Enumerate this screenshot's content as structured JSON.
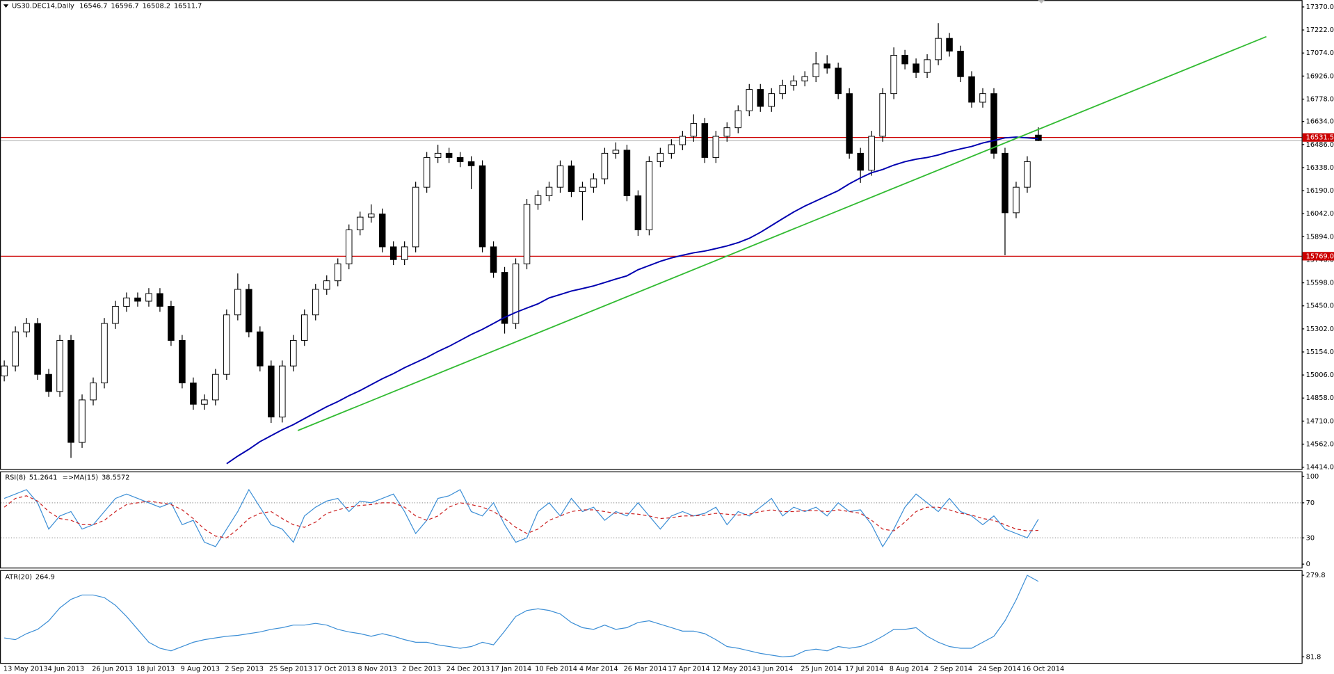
{
  "chart_data": {
    "type": "candlestick",
    "symbol": "US30.DEC14,Daily",
    "open": [
      15000,
      15064,
      15283,
      15337,
      15010,
      14900,
      15228,
      14573,
      14846,
      14955,
      15337,
      15447,
      15501,
      15480,
      15529,
      15447,
      15228,
      14955,
      14818,
      14846,
      15010,
      15392,
      15556,
      15283,
      15064,
      14736,
      15064,
      15228,
      15392,
      15556,
      15611,
      15720,
      15938,
      16020,
      16040,
      15829,
      15747,
      15829,
      16212,
      16403,
      16430,
      16403,
      16376,
      16350,
      15829,
      15665,
      15337,
      15720,
      16102,
      16157,
      16212,
      16349,
      16184,
      16212,
      16266,
      16430,
      16450,
      16157,
      15938,
      16376,
      16430,
      16485,
      16539,
      16621,
      16403,
      16539,
      16594,
      16703,
      16840,
      16731,
      16813,
      16867,
      16895,
      16922,
      17004,
      16977,
      16813,
      16430,
      16321,
      16539,
      16813,
      17059,
      17004,
      16949,
      17031,
      17168,
      17086,
      16922,
      16758,
      16813,
      16430,
      16048,
      16212,
      16546.7
    ],
    "high": [
      15099,
      15318,
      15372,
      15372,
      15045,
      15263,
      15263,
      14881,
      14990,
      15372,
      15482,
      15536,
      15536,
      15564,
      15564,
      15482,
      15263,
      14990,
      14881,
      15045,
      15427,
      15658,
      15591,
      15318,
      15099,
      15099,
      15263,
      15427,
      15591,
      15646,
      15755,
      15973,
      16055,
      16102,
      16075,
      15864,
      15864,
      16247,
      16438,
      16485,
      16465,
      16438,
      16411,
      16385,
      15864,
      15700,
      15755,
      16137,
      16192,
      16247,
      16384,
      16384,
      16247,
      16301,
      16465,
      16500,
      16485,
      16192,
      16411,
      16465,
      16520,
      16574,
      16680,
      16656,
      16574,
      16629,
      16738,
      16875,
      16875,
      16848,
      16902,
      16930,
      16957,
      17080,
      17060,
      17012,
      16848,
      16465,
      16574,
      16848,
      17110,
      17094,
      17039,
      17066,
      17266,
      17203,
      17121,
      16957,
      16848,
      16848,
      16465,
      16247,
      16411,
      16596.7
    ],
    "low": [
      14965,
      15029,
      15248,
      14975,
      14865,
      14865,
      14474,
      14538,
      14811,
      14920,
      15302,
      15412,
      15445,
      15445,
      15412,
      15193,
      14920,
      14783,
      14783,
      14811,
      14975,
      15357,
      15248,
      15029,
      14698,
      14701,
      15029,
      15193,
      15357,
      15521,
      15576,
      15685,
      15903,
      15985,
      15794,
      15712,
      15712,
      15794,
      16177,
      16368,
      16368,
      16341,
      16200,
      15794,
      15630,
      15272,
      15302,
      15685,
      16067,
      16122,
      16177,
      16149,
      16000,
      16177,
      16231,
      16395,
      16122,
      15900,
      15903,
      16341,
      16395,
      16450,
      16504,
      16368,
      16368,
      16504,
      16559,
      16668,
      16696,
      16696,
      16778,
      16832,
      16860,
      16887,
      16942,
      16778,
      16395,
      16240,
      16286,
      16504,
      16778,
      16969,
      16914,
      16914,
      16996,
      17051,
      16887,
      16723,
      16723,
      16395,
      15775,
      16013,
      16177,
      16508.2
    ],
    "close": [
      15064,
      15283,
      15337,
      15010,
      14900,
      15228,
      14573,
      14846,
      14955,
      15337,
      15447,
      15501,
      15480,
      15529,
      15447,
      15228,
      14955,
      14818,
      14846,
      15010,
      15392,
      15556,
      15283,
      15064,
      14736,
      15064,
      15228,
      15392,
      15556,
      15611,
      15720,
      15938,
      16020,
      16040,
      15829,
      15747,
      15829,
      16212,
      16403,
      16430,
      16403,
      16376,
      16350,
      15829,
      15665,
      15337,
      15720,
      16102,
      16157,
      16212,
      16349,
      16184,
      16212,
      16266,
      16430,
      16450,
      16157,
      15938,
      16376,
      16430,
      16485,
      16539,
      16621,
      16403,
      16539,
      16594,
      16703,
      16840,
      16731,
      16813,
      16867,
      16895,
      16922,
      17004,
      16977,
      16813,
      16430,
      16321,
      16539,
      16813,
      17059,
      17004,
      16949,
      17031,
      17168,
      17086,
      16922,
      16758,
      16813,
      16430,
      16048,
      16212,
      16376,
      16511.7
    ],
    "ylim": [
      14403,
      17414
    ],
    "yticks": [
      {
        "value": 17370,
        "label": "17370.0"
      },
      {
        "value": 17222,
        "label": "17222.0"
      },
      {
        "value": 17074,
        "label": "17074.0"
      },
      {
        "value": 16926,
        "label": "16926.0"
      },
      {
        "value": 16778,
        "label": "16778.0"
      },
      {
        "value": 16634,
        "label": "16634.0"
      },
      {
        "value": 16486,
        "label": "16486.0"
      },
      {
        "value": 16338,
        "label": "16338.0"
      },
      {
        "value": 16190,
        "label": "16190.0"
      },
      {
        "value": 16042,
        "label": "16042.0"
      },
      {
        "value": 15894,
        "label": "15894.0"
      },
      {
        "value": 15746,
        "label": "15746.0"
      },
      {
        "value": 15598,
        "label": "15598.0"
      },
      {
        "value": 15450,
        "label": "15450.0"
      },
      {
        "value": 15302,
        "label": "15302.0"
      },
      {
        "value": 15154,
        "label": "15154.0"
      },
      {
        "value": 15006,
        "label": "15006.0"
      },
      {
        "value": 14858,
        "label": "14858.0"
      },
      {
        "value": 14710,
        "label": "14710.0"
      },
      {
        "value": 14562,
        "label": "14562.0"
      },
      {
        "value": 14414,
        "label": "14414.0"
      }
    ],
    "ma": {
      "color": "#0000b0",
      "values": [
        null,
        null,
        null,
        null,
        null,
        null,
        null,
        null,
        null,
        null,
        null,
        null,
        null,
        null,
        null,
        null,
        null,
        null,
        null,
        null,
        14436,
        14485,
        14529,
        14578,
        14616,
        14654,
        14687,
        14726,
        14764,
        14802,
        14835,
        14873,
        14906,
        14944,
        14982,
        15015,
        15053,
        15086,
        15119,
        15157,
        15190,
        15228,
        15266,
        15299,
        15337,
        15376,
        15408,
        15436,
        15463,
        15501,
        15523,
        15545,
        15561,
        15578,
        15600,
        15622,
        15643,
        15682,
        15709,
        15736,
        15758,
        15775,
        15791,
        15802,
        15818,
        15835,
        15856,
        15884,
        15922,
        15966,
        16010,
        16053,
        16091,
        16124,
        16157,
        16190,
        16234,
        16272,
        16305,
        16326,
        16354,
        16376,
        16392,
        16403,
        16419,
        16441,
        16458,
        16474,
        16496,
        16512,
        16529,
        16534,
        16529,
        16523
      ]
    },
    "trendline": {
      "color": "#33bb33",
      "x": [
        26.4,
        113.5
      ],
      "values": [
        14649,
        17179
      ]
    },
    "hlines": [
      {
        "value": 16531.5,
        "color": "#cc0000"
      },
      {
        "value": 15769,
        "label": "15769.0",
        "color": "#cc0000"
      }
    ],
    "xtick_labels": [
      "13 May 2013",
      "4 Jun 2013",
      "26 Jun 2013",
      "18 Jul 2013",
      "9 Aug 2013",
      "2 Sep 2013",
      "25 Sep 2013",
      "17 Oct 2013",
      "8 Nov 2013",
      "2 Dec 2013",
      "24 Dec 2013",
      "17 Jan 2014",
      "10 Feb 2014",
      "4 Mar 2014",
      "26 Mar 2014",
      "17 Apr 2014",
      "12 May 2014",
      "3 Jun 2014",
      "25 Jun 2014",
      "17 Jul 2014",
      "8 Aug 2014",
      "2 Sep 2014",
      "24 Sep 2014",
      "16 Oct 2014"
    ],
    "indicators": [
      {
        "type": "line",
        "ylim": [
          -3.9,
          105.8
        ],
        "yticks": [
          100,
          70,
          30,
          0
        ],
        "levels": [
          70,
          30
        ],
        "series": [
          {
            "name": "RSI(8)",
            "color": "#3d8fd6",
            "values": [
              75,
              80,
              85,
              70,
              40,
              55,
              60,
              40,
              45,
              60,
              75,
              80,
              75,
              70,
              65,
              70,
              45,
              50,
              25,
              20,
              40,
              60,
              85,
              65,
              45,
              40,
              25,
              55,
              65,
              72,
              75,
              60,
              72,
              70,
              75,
              80,
              60,
              35,
              50,
              75,
              78,
              85,
              60,
              55,
              70,
              45,
              25,
              30,
              60,
              70,
              55,
              75,
              60,
              65,
              50,
              60,
              55,
              70,
              55,
              40,
              55,
              60,
              55,
              58,
              65,
              45,
              60,
              55,
              65,
              75,
              55,
              65,
              60,
              65,
              55,
              70,
              60,
              62,
              45,
              20,
              40,
              65,
              80,
              70,
              60,
              75,
              60,
              55,
              45,
              55,
              40,
              35,
              30,
              51.2641
            ]
          },
          {
            "name": "=>MA(15)",
            "color": "#cc2222",
            "dashed": true,
            "values": [
              65,
              75,
              78,
              72,
              60,
              52,
              50,
              45,
              45,
              50,
              60,
              68,
              70,
              72,
              70,
              68,
              62,
              52,
              40,
              32,
              30,
              40,
              52,
              58,
              60,
              52,
              45,
              42,
              48,
              58,
              62,
              65,
              67,
              68,
              70,
              70,
              65,
              55,
              50,
              55,
              65,
              70,
              68,
              65,
              60,
              52,
              42,
              35,
              40,
              50,
              55,
              60,
              62,
              62,
              60,
              58,
              58,
              57,
              55,
              52,
              53,
              55,
              55,
              56,
              58,
              57,
              56,
              57,
              60,
              62,
              60,
              60,
              61,
              61,
              60,
              62,
              60,
              58,
              50,
              40,
              38,
              48,
              60,
              65,
              65,
              62,
              58,
              56,
              52,
              50,
              45,
              40,
              38,
              38.5572
            ]
          }
        ]
      },
      {
        "type": "line",
        "ylim": [
          67.2,
          292.3
        ],
        "yticks": [
          279.8,
          81.8
        ],
        "series": [
          {
            "name": "ATR(20)",
            "color": "#3d8fd6",
            "values": [
              127.7,
              123.5,
              138.1,
              148.5,
              169.3,
              200.6,
              221.4,
              231.9,
              231.9,
              225.6,
              206.9,
              179.8,
              148.5,
              117.2,
              102.7,
              96.4,
              106.8,
              117.2,
              123.5,
              127.7,
              131.8,
              133.9,
              138.1,
              142.2,
              148.5,
              152.7,
              158.9,
              158.9,
              163.1,
              158.9,
              148.5,
              142.2,
              138.1,
              131.8,
              138.1,
              131.8,
              123.5,
              117.2,
              117.2,
              111,
              106.8,
              102.7,
              106.8,
              117.2,
              111,
              144.3,
              179.8,
              194.4,
              198.5,
              194.4,
              186,
              165.2,
              152.7,
              148.5,
              158.9,
              148.5,
              152.7,
              165.2,
              169.3,
              161,
              152.7,
              144.3,
              144.3,
              138.1,
              123.5,
              106.8,
              102.7,
              96.4,
              90.2,
              86,
              81.8,
              83.9,
              96.4,
              100.6,
              96.4,
              106.8,
              102.7,
              106.8,
              117.2,
              131.8,
              148.5,
              148.5,
              152.7,
              131.8,
              117.2,
              106.8,
              102.7,
              102.7,
              117.2,
              131.8,
              169.3,
              220,
              279.8,
              264.9
            ]
          }
        ]
      }
    ]
  }
}
